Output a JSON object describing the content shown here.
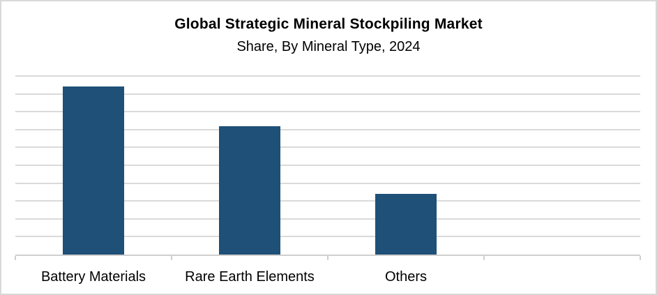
{
  "chart_data": {
    "type": "bar",
    "title": "Global Strategic Mineral Stockpiling Market",
    "subtitle": "Share, By Mineral Type, 2024",
    "categories": [
      "Battery Materials",
      "Rare Earth Elements",
      "Others"
    ],
    "values": [
      47,
      36,
      17
    ],
    "values_unit": "% share (estimated from gridlines; y-axis has no tick labels)",
    "xlabel": "",
    "ylabel": "",
    "ylim": [
      0,
      50
    ],
    "gridline_step": 5,
    "grid": true,
    "legend_position": "none",
    "x_slot_count": 4,
    "x_tick_positions_pct": [
      0,
      25,
      50,
      75,
      100
    ],
    "bar_color": "#1f5077",
    "gridline_color": "#dadada",
    "axis_color": "#cfcfcf",
    "background_color": "#ffffff",
    "border_color": "#d9d9d9",
    "title_color": "#000000"
  }
}
